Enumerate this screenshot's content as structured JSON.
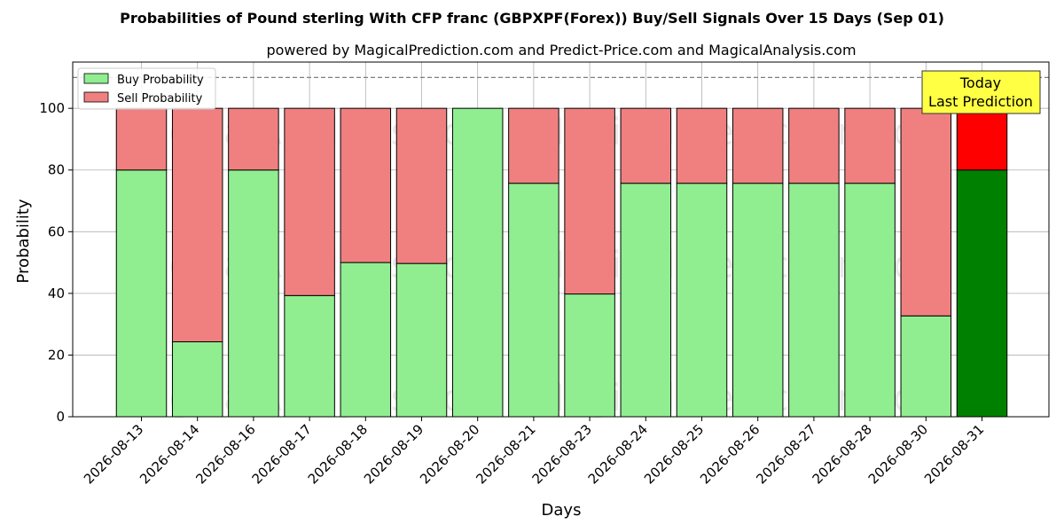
{
  "chart_data": {
    "type": "bar",
    "stacked": true,
    "title": "Probabilities of Pound sterling With CFP franc (GBPXPF(Forex)) Buy/Sell Signals Over 15 Days (Sep 01)",
    "subtitle": "powered by MagicalPrediction.com and Predict-Price.com and MagicalAnalysis.com",
    "xlabel": "Days",
    "ylabel": "Probability",
    "ylim": [
      0,
      115
    ],
    "yticks": [
      0,
      20,
      40,
      60,
      80,
      100
    ],
    "reference_line": 110,
    "grid": true,
    "legend_position": "top-left",
    "categories": [
      "2026-08-13",
      "2026-08-14",
      "2026-08-16",
      "2026-08-17",
      "2026-08-18",
      "2026-08-19",
      "2026-08-20",
      "2026-08-21",
      "2026-08-23",
      "2026-08-24",
      "2026-08-25",
      "2026-08-26",
      "2026-08-27",
      "2026-08-28",
      "2026-08-30",
      "2026-08-31"
    ],
    "series": [
      {
        "name": "Buy Probability",
        "color": "#90EE90",
        "highlight_color": "#008000",
        "values": [
          80,
          24.3,
          80,
          39.3,
          50,
          49.7,
          100,
          75.7,
          39.8,
          75.7,
          75.7,
          75.7,
          75.7,
          75.7,
          32.7,
          80
        ]
      },
      {
        "name": "Sell Probability",
        "color": "#F08080",
        "highlight_color": "#FF0000",
        "values": [
          20,
          75.7,
          20,
          60.7,
          50,
          50.3,
          0,
          24.3,
          60.2,
          24.3,
          24.3,
          24.3,
          24.3,
          24.3,
          67.3,
          20
        ]
      }
    ],
    "highlight_index": 15,
    "annotation": {
      "lines": [
        "Today",
        "Last Prediction"
      ],
      "background": "#FFFF44"
    },
    "watermarks": [
      "MagicalAnalysis.com",
      "MagicalPrediction.com"
    ]
  }
}
